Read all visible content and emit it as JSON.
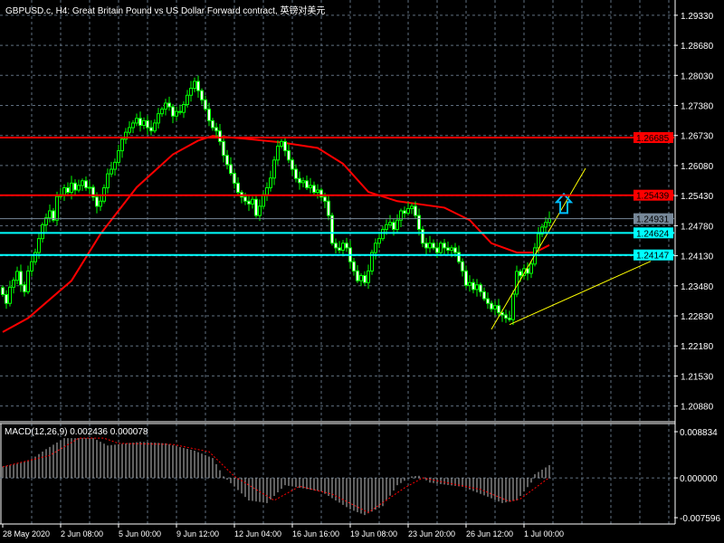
{
  "window": {
    "symbol_title": "GBPUSD.c, H4:  Great Britain Pound vs US Dollar Forward contract, 英镑对美元"
  },
  "colors": {
    "background": "#000000",
    "grid": "#5f6f7f",
    "axis": "#ffffff",
    "candle": "#00ff00",
    "bull_body": "#000000",
    "bear_body": "#ffffff",
    "moving_average": "#ff0000",
    "resistance_line": "#ff0000",
    "support_line": "#00ffff",
    "bid_line": "#778899",
    "trendline": "#ffff00",
    "arrow": "#00bfff",
    "macd_histogram": "#c0c0c0",
    "macd_signal": "#ff0000"
  },
  "chart_data": {
    "type": "candlestick",
    "timeframe": "H4",
    "price_axis": {
      "range": [
        1.2056,
        1.2966
      ],
      "ticks": [
        "1.29330",
        "1.28680",
        "1.28030",
        "1.27380",
        "1.26730",
        "1.26080",
        "1.25430",
        "1.24780",
        "1.24130",
        "1.23480",
        "1.22830",
        "1.22180",
        "1.21530",
        "1.20880"
      ]
    },
    "time_axis": {
      "labels": [
        {
          "bar": 0,
          "label": "28 May 2020"
        },
        {
          "bar": 16,
          "label": "2 Jun 08:00"
        },
        {
          "bar": 32,
          "label": "5 Jun 00:00"
        },
        {
          "bar": 48,
          "label": "9 Jun 12:00"
        },
        {
          "bar": 64,
          "label": "12 Jun 04:00"
        },
        {
          "bar": 80,
          "label": "16 Jun 16:00"
        },
        {
          "bar": 96,
          "label": "19 Jun 08:00"
        },
        {
          "bar": 112,
          "label": "23 Jun 20:00"
        },
        {
          "bar": 128,
          "label": "26 Jun 12:00"
        },
        {
          "bar": 144,
          "label": "1 Jul 00:00"
        }
      ]
    },
    "closes": [
      1.2329,
      1.231,
      1.2345,
      1.236,
      1.2379,
      1.235,
      1.2335,
      1.238,
      1.24,
      1.242,
      1.245,
      1.248,
      1.2495,
      1.251,
      1.249,
      1.2541,
      1.2545,
      1.256,
      1.255,
      1.257,
      1.2555,
      1.2565,
      1.2575,
      1.256,
      1.2561,
      1.254,
      1.252,
      1.2531,
      1.256,
      1.259,
      1.26,
      1.2615,
      1.264,
      1.2665,
      1.268,
      1.269,
      1.27,
      1.271,
      1.2695,
      1.2705,
      1.269,
      1.2683,
      1.27,
      1.272,
      1.273,
      1.2743,
      1.2735,
      1.2715,
      1.2725,
      1.2723,
      1.274,
      1.276,
      1.2775,
      1.279,
      1.277,
      1.275,
      1.273,
      1.2705,
      1.269,
      1.2683,
      1.266,
      1.263,
      1.261,
      1.2591,
      1.257,
      1.255,
      1.254,
      1.2531,
      1.2525,
      1.2535,
      1.25,
      1.252,
      1.2545,
      1.256,
      1.2581,
      1.262,
      1.265,
      1.266,
      1.264,
      1.262,
      1.26,
      1.258,
      1.2571,
      1.2575,
      1.256,
      1.2565,
      1.255,
      1.2555,
      1.254,
      1.2531,
      1.25,
      1.244,
      1.243,
      1.2425,
      1.244,
      1.243,
      1.24,
      1.238,
      1.2359,
      1.237,
      1.2355,
      1.238,
      1.242,
      1.244,
      1.245,
      1.247,
      1.248,
      1.2485,
      1.247,
      1.249,
      1.251,
      1.2505,
      1.2515,
      1.252,
      1.25,
      1.247,
      1.244,
      1.243,
      1.244,
      1.243,
      1.242,
      1.244,
      1.243,
      1.2425,
      1.243,
      1.242,
      1.24,
      1.238,
      1.2349,
      1.2355,
      1.234,
      1.235,
      1.2335,
      1.232,
      1.231,
      1.2298,
      1.2305,
      1.229,
      1.2285,
      1.2278,
      1.2275,
      1.233,
      1.2379,
      1.237,
      1.2385,
      1.2375,
      1.2395,
      1.243,
      1.246,
      1.2475,
      1.2485,
      1.2493
    ],
    "moving_average": [
      [
        0,
        1.2248
      ],
      [
        7,
        1.2278
      ],
      [
        19,
        1.2359
      ],
      [
        27,
        1.246
      ],
      [
        37,
        1.2561
      ],
      [
        47,
        1.2632
      ],
      [
        54,
        1.2662
      ],
      [
        58,
        1.2672
      ],
      [
        67,
        1.2666
      ],
      [
        77,
        1.2658
      ],
      [
        87,
        1.2646
      ],
      [
        94,
        1.2612
      ],
      [
        101,
        1.2551
      ],
      [
        109,
        1.2531
      ],
      [
        122,
        1.2517
      ],
      [
        129,
        1.249
      ],
      [
        135,
        1.244
      ],
      [
        142,
        1.242
      ],
      [
        147,
        1.242
      ],
      [
        151,
        1.2436
      ]
    ],
    "horizontal_lines": [
      {
        "price": "1.26685",
        "kind": "resistance"
      },
      {
        "price": "1.25439",
        "kind": "resistance"
      },
      {
        "price": "1.24931",
        "kind": "bid"
      },
      {
        "price": "1.24624",
        "kind": "support"
      },
      {
        "price": "1.24147",
        "kind": "support"
      }
    ],
    "trendlines": [
      {
        "from": [
          135,
          1.2254
        ],
        "to": [
          161,
          1.2602
        ]
      },
      {
        "from": [
          140,
          1.2264
        ],
        "to": [
          179,
          1.2401
        ]
      }
    ],
    "arrow": {
      "bar": 155,
      "price": 1.2525,
      "direction": "up"
    },
    "macd": {
      "label": "MACD(12,26,9) 0.002436 0.000078",
      "axis_ticks": [
        "0.008834",
        "0.000000",
        "-0.007596"
      ],
      "range": [
        -0.007596,
        0.008834
      ],
      "histogram": [
        [
          0,
          0.0022
        ],
        [
          4,
          0.0027
        ],
        [
          8,
          0.0036
        ],
        [
          12,
          0.0055
        ],
        [
          17,
          0.0076
        ],
        [
          21,
          0.0076
        ],
        [
          25,
          0.0076
        ],
        [
          29,
          0.0062
        ],
        [
          38,
          0.0069
        ],
        [
          45,
          0.0066
        ],
        [
          53,
          0.0052
        ],
        [
          58,
          0.0038
        ],
        [
          61,
          0.0003
        ],
        [
          63,
          -0.001
        ],
        [
          68,
          -0.0043
        ],
        [
          73,
          -0.0048
        ],
        [
          78,
          -0.0014
        ],
        [
          88,
          -0.0026
        ],
        [
          96,
          -0.006
        ],
        [
          100,
          -0.0071
        ],
        [
          105,
          -0.0054
        ],
        [
          109,
          -0.0014
        ],
        [
          113,
          0.0003
        ],
        [
          115,
          0.0004
        ],
        [
          118,
          -0.0009
        ],
        [
          127,
          -0.0017
        ],
        [
          134,
          -0.0036
        ],
        [
          138,
          -0.0048
        ],
        [
          142,
          -0.0043
        ],
        [
          146,
          -0.0009
        ],
        [
          147,
          0.0007
        ],
        [
          151,
          0.002436
        ]
      ],
      "signal": [
        [
          0,
          0.0021
        ],
        [
          13,
          0.0043
        ],
        [
          21,
          0.0076
        ],
        [
          28,
          0.0076
        ],
        [
          32,
          0.0066
        ],
        [
          47,
          0.0064
        ],
        [
          57,
          0.005
        ],
        [
          64,
          0.0003
        ],
        [
          75,
          -0.0043
        ],
        [
          82,
          -0.0016
        ],
        [
          91,
          -0.0031
        ],
        [
          101,
          -0.0066
        ],
        [
          111,
          -0.0019
        ],
        [
          116,
          0.0
        ],
        [
          132,
          -0.0022
        ],
        [
          140,
          -0.0045
        ],
        [
          143,
          -0.004
        ],
        [
          151,
          7.8e-05
        ]
      ]
    }
  }
}
